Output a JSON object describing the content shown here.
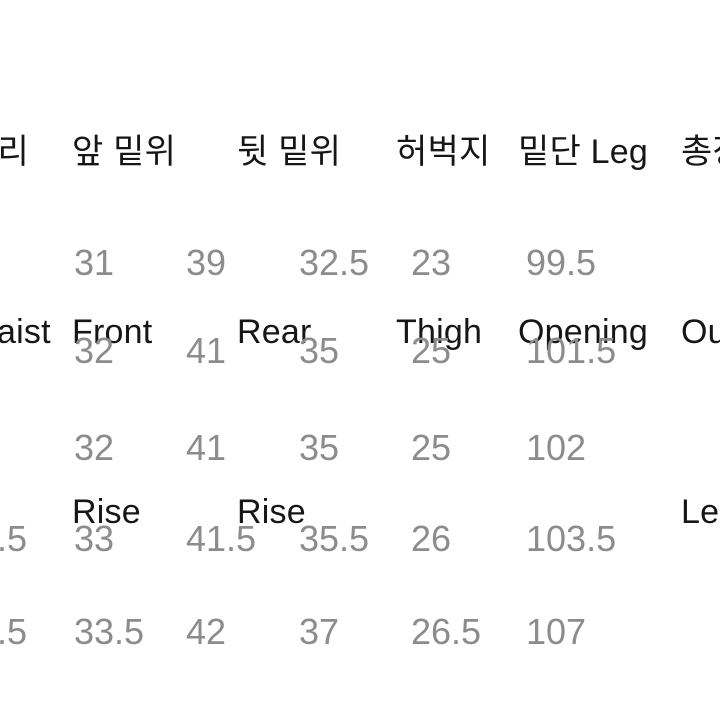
{
  "colors": {
    "background": "#ffffff",
    "header_text": "#161616",
    "value_text": "#8c8c8c"
  },
  "size_chart": {
    "columns": [
      {
        "id": "waist",
        "lines": [
          "허리",
          "Waist"
        ]
      },
      {
        "id": "front-rise",
        "lines": [
          "앞 밑위",
          "Front",
          "Rise"
        ]
      },
      {
        "id": "rear-rise",
        "lines": [
          "뒷 밑위",
          "Rear",
          "Rise"
        ]
      },
      {
        "id": "thigh",
        "lines": [
          "허벅지",
          "Thigh"
        ]
      },
      {
        "id": "leg-opening",
        "lines": [
          "밑단 Leg",
          "Opening"
        ]
      },
      {
        "id": "outseam",
        "lines": [
          "총장",
          "Outseam",
          "Length"
        ]
      }
    ],
    "rows": [
      [
        "",
        "31",
        "39",
        "32.5",
        "23",
        "99.5"
      ],
      [
        "",
        "32",
        "41",
        "35",
        "25",
        "101.5"
      ],
      [
        "",
        "32",
        "41",
        "35",
        "25",
        "102"
      ],
      [
        ".5",
        "33",
        "41.5",
        "35.5",
        "26",
        "103.5"
      ],
      [
        ".5",
        "33.5",
        "42",
        "37",
        "26.5",
        "107"
      ]
    ]
  },
  "chart_data": {
    "type": "table",
    "columns_ko": [
      "허리",
      "앞 밑위",
      "뒷 밑위",
      "허벅지",
      "밑단",
      "총장"
    ],
    "columns_en": [
      "Waist",
      "Front Rise",
      "Rear Rise",
      "Thigh",
      "Leg Opening",
      "Outseam Length"
    ],
    "rows": [
      [
        null,
        31,
        39,
        32.5,
        23,
        99.5
      ],
      [
        null,
        32,
        41,
        35,
        25,
        101.5
      ],
      [
        null,
        32,
        41,
        35,
        25,
        102
      ],
      [
        null,
        33,
        41.5,
        35.5,
        26,
        103.5
      ],
      [
        null,
        33.5,
        42,
        37,
        26.5,
        107
      ]
    ]
  }
}
